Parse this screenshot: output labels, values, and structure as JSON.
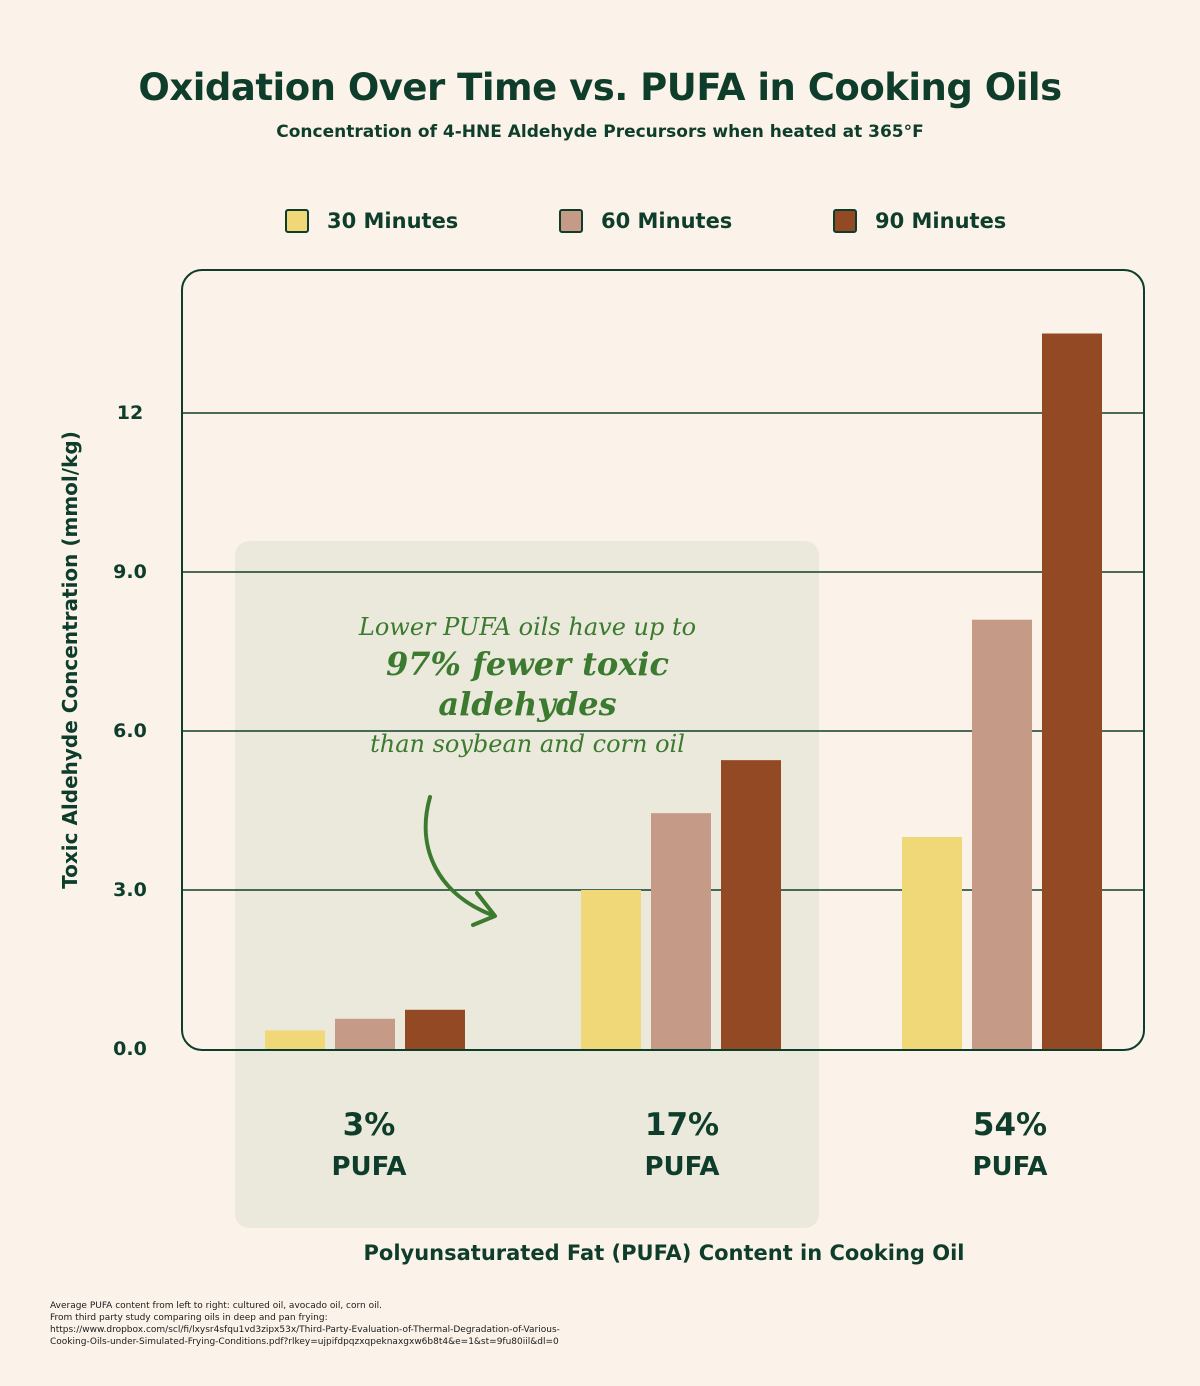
{
  "chart_data": {
    "type": "bar",
    "title": "Oxidation Over Time vs. PUFA in Cooking Oils",
    "subtitle": "Concentration of 4-HNE Aldehyde Precursors when heated at 365°F",
    "xlabel": "Polyunsaturated Fat (PUFA) Content in Cooking Oil",
    "ylabel": "Toxic Aldehyde Concentration (mmol/kg)",
    "ylim": [
      0,
      15
    ],
    "yticks": [
      0,
      3,
      6,
      9,
      12
    ],
    "ytick_labels": [
      "0.0",
      "3.0",
      "6.0",
      "9.0",
      "12"
    ],
    "categories": [
      {
        "pct": "3%",
        "unit": "PUFA"
      },
      {
        "pct": "17%",
        "unit": "PUFA"
      },
      {
        "pct": "54%",
        "unit": "PUFA"
      }
    ],
    "series": [
      {
        "name": "30 Minutes",
        "color": "#F0D878",
        "values": [
          0.35,
          3.0,
          4.0
        ]
      },
      {
        "name": "60 Minutes",
        "color": "#C59A86",
        "values": [
          0.57,
          4.45,
          8.1
        ]
      },
      {
        "name": "90 Minutes",
        "color": "#924924",
        "values": [
          0.74,
          5.45,
          13.5
        ]
      }
    ],
    "grid": true,
    "legend": "top"
  },
  "callout": {
    "line1": "Lower PUFA oils have up to",
    "line2a": "97% fewer toxic",
    "line2b": "aldehydes",
    "line3": "than soybean and corn oil"
  },
  "footnote": {
    "line1": "Average PUFA content from left to right: cultured oil, avocado oil, corn oil.",
    "line2": "From third party study comparing oils in deep and pan frying:",
    "line3": "https://www.dropbox.com/scl/fi/lxysr4sfqu1vd3zipx53x/Third-Party-Evaluation-of-Thermal-Degradation-of-Various-",
    "line4": "Cooking-Oils-under-Simulated-Frying-Conditions.pdf?rlkey=ujpifdpqzxqpeknaxgxw6b8t4&e=1&st=9fu80iil&dl=0"
  },
  "colors": {
    "background": "#FBF3E9",
    "text": "#0F3D2B",
    "highlight": "#EBE9DC",
    "accent_green": "#3B7A2F"
  }
}
